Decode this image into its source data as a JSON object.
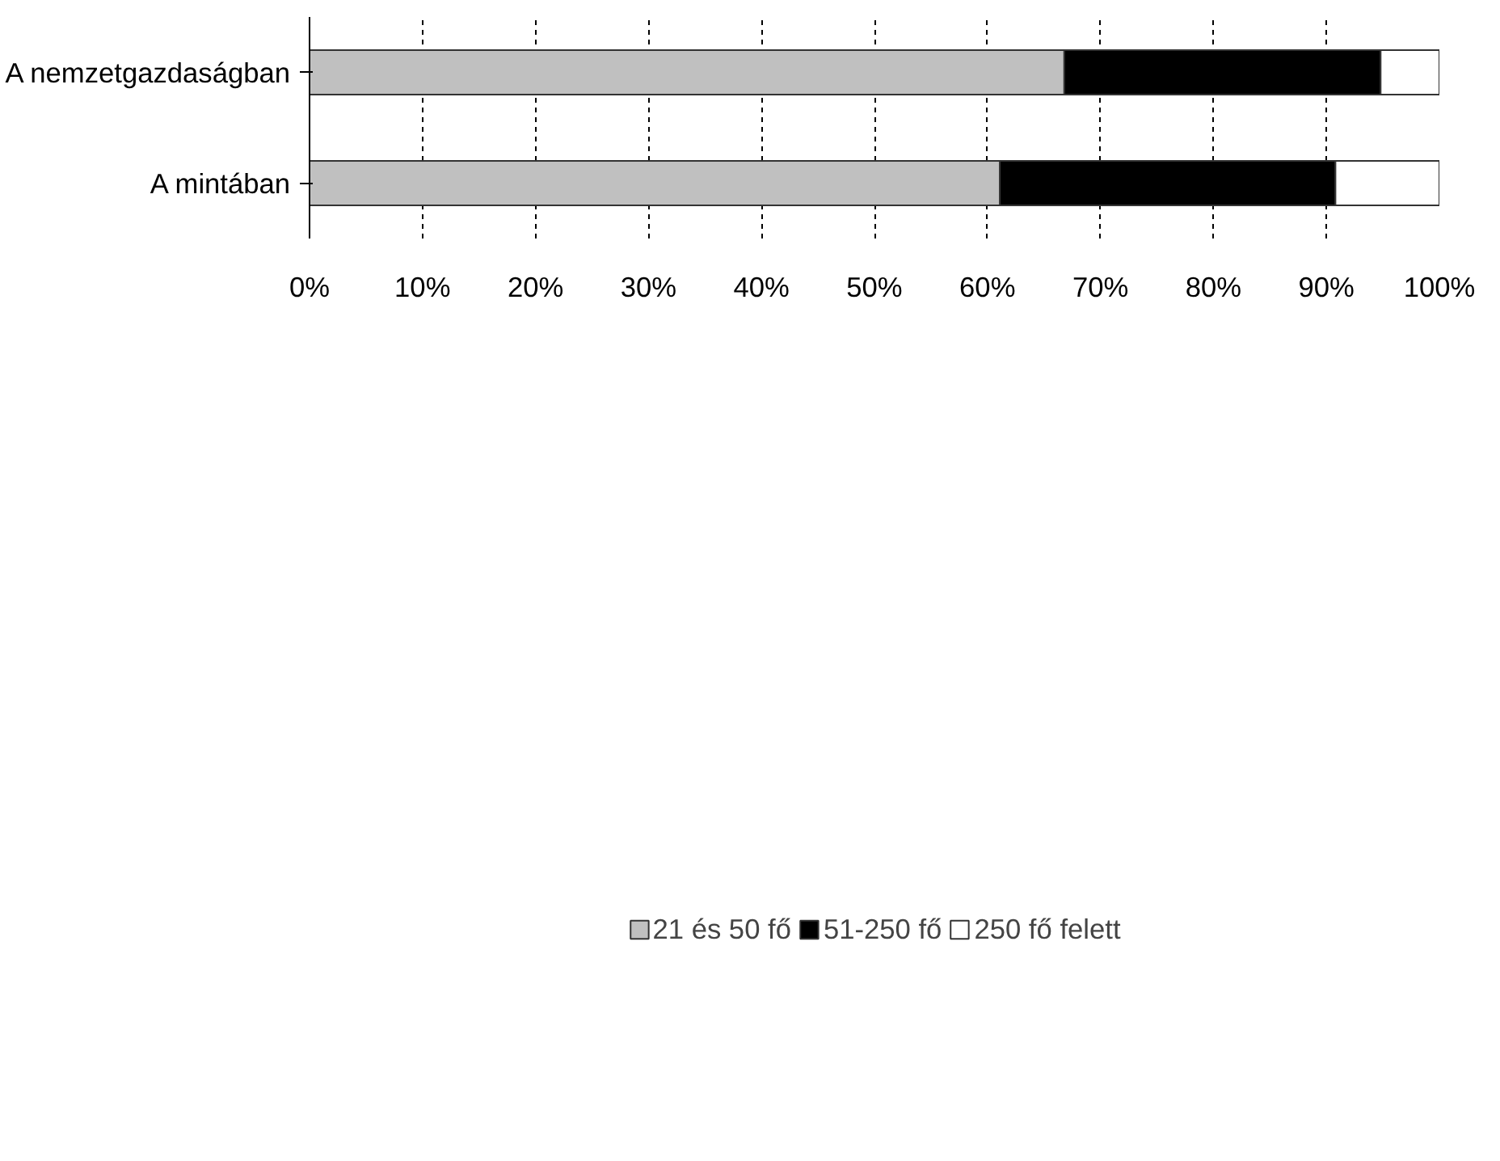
{
  "chart_data": {
    "type": "bar",
    "orientation": "horizontal",
    "stacked": true,
    "categories": [
      "A nemzetgazdaságban",
      "A mintában"
    ],
    "series": [
      {
        "name": "21 és 50 fő",
        "color": "#c0c0c0",
        "values": [
          66.8,
          61.1
        ]
      },
      {
        "name": "51-250 fő",
        "color": "#000000",
        "values": [
          28.0,
          29.7
        ]
      },
      {
        "name": "250 fő felett",
        "color": "#ffffff",
        "values": [
          5.2,
          9.2
        ]
      }
    ],
    "xlim": [
      0,
      100
    ],
    "xticks": [
      {
        "value": 0,
        "label": "0%"
      },
      {
        "value": 10,
        "label": "10%"
      },
      {
        "value": 20,
        "label": "20%"
      },
      {
        "value": 30,
        "label": "30%"
      },
      {
        "value": 40,
        "label": "40%"
      },
      {
        "value": 50,
        "label": "50%"
      },
      {
        "value": 60,
        "label": "60%"
      },
      {
        "value": 70,
        "label": "70%"
      },
      {
        "value": 80,
        "label": "80%"
      },
      {
        "value": 90,
        "label": "90%"
      },
      {
        "value": 100,
        "label": "100%"
      }
    ],
    "grid": "x",
    "legend": "bottom"
  }
}
